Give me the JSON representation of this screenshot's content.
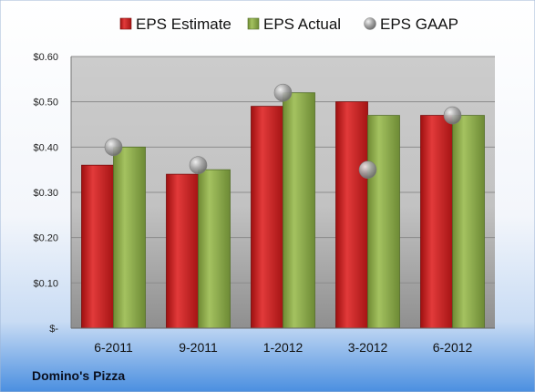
{
  "chart_data": {
    "type": "bar",
    "categories": [
      "6-2011",
      "9-2011",
      "1-2012",
      "3-2012",
      "6-2012"
    ],
    "series": [
      {
        "name": "EPS Estimate",
        "kind": "bar",
        "color": "#cc1f1f",
        "values": [
          0.36,
          0.34,
          0.49,
          0.5,
          0.47
        ]
      },
      {
        "name": "EPS Actual",
        "kind": "bar",
        "color": "#8aa84a",
        "values": [
          0.4,
          0.35,
          0.52,
          0.47,
          0.47
        ]
      },
      {
        "name": "EPS GAAP",
        "kind": "marker",
        "color": "#9a9a9a",
        "values": [
          0.4,
          0.36,
          0.52,
          0.35,
          0.47
        ]
      }
    ],
    "ylim": [
      0,
      0.6
    ],
    "yticks": [
      0,
      0.1,
      0.2,
      0.3,
      0.4,
      0.5,
      0.6
    ],
    "ytick_labels": [
      "$-",
      "$0.10",
      "$0.20",
      "$0.30",
      "$0.40",
      "$0.50",
      "$0.60"
    ],
    "grid": true,
    "legend": "top"
  },
  "footer": {
    "company": "Domino's Pizza"
  }
}
